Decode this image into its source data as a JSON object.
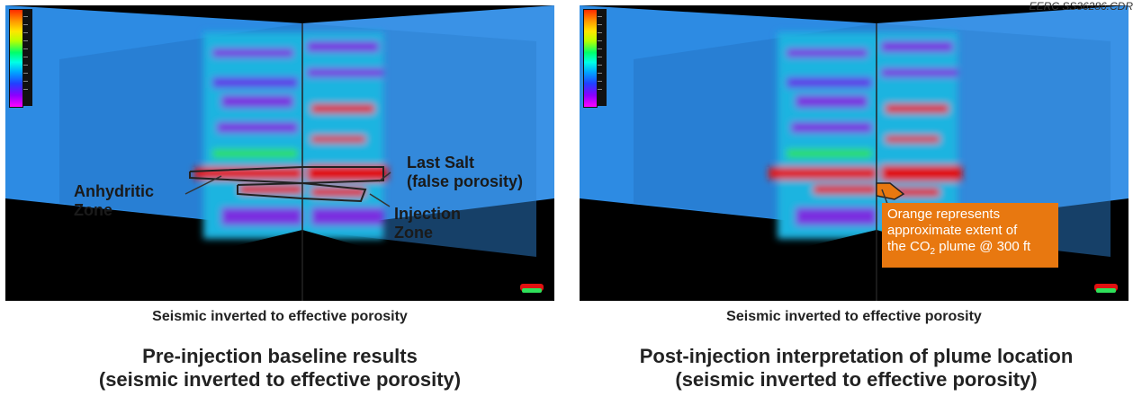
{
  "stamp": "EERC SS36286.CDR",
  "left_panel": {
    "annotations": {
      "anhydritic": [
        "Anhydritic",
        "Zone"
      ],
      "last_salt": [
        "Last Salt",
        "(false porosity)"
      ],
      "injection": [
        "Injection",
        "Zone"
      ]
    },
    "caption": "Seismic inverted to effective porosity",
    "title": [
      "Pre-injection baseline results",
      "(seismic inverted to effective porosity)"
    ]
  },
  "right_panel": {
    "callout": {
      "line1": "Orange represents",
      "line2": "approximate extent of",
      "line3_pre": "the CO",
      "line3_sub": "2",
      "line3_post": " plume @ 300 ft"
    },
    "caption": "Seismic inverted to effective porosity",
    "title": [
      "Post-injection interpretation of plume location",
      "(seismic inverted to effective porosity)"
    ]
  },
  "colors": {
    "background_plane": "#3a8fe0",
    "porosity_high": "#e00010",
    "porosity_low": "#6a2cd8",
    "callout": "#e87810"
  }
}
